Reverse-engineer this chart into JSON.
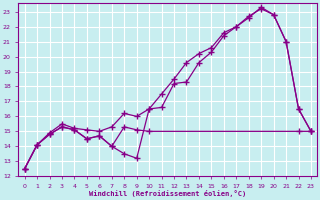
{
  "xlabel": "Windchill (Refroidissement éolien,°C)",
  "bg_color": "#c8eef0",
  "line_color": "#880088",
  "grid_color": "#ffffff",
  "xlim": [
    -0.5,
    23.5
  ],
  "ylim": [
    12,
    23.6
  ],
  "yticks": [
    12,
    13,
    14,
    15,
    16,
    17,
    18,
    19,
    20,
    21,
    22,
    23
  ],
  "xticks": [
    0,
    1,
    2,
    3,
    4,
    5,
    6,
    7,
    8,
    9,
    10,
    11,
    12,
    13,
    14,
    15,
    16,
    17,
    18,
    19,
    20,
    21,
    22,
    23
  ],
  "line1_x": [
    0,
    1,
    2,
    3,
    4,
    5,
    6,
    7,
    8,
    9,
    10,
    11,
    12,
    13,
    14,
    15,
    16,
    17,
    18,
    19,
    20,
    21,
    22,
    23
  ],
  "line1_y": [
    12.5,
    14.1,
    14.8,
    15.3,
    15.1,
    14.5,
    14.7,
    14.0,
    13.5,
    13.2,
    16.5,
    16.6,
    18.2,
    18.3,
    19.6,
    20.3,
    21.4,
    22.0,
    22.6,
    23.3,
    22.8,
    21.0,
    16.5,
    15.0
  ],
  "line2_x": [
    0,
    1,
    2,
    3,
    4,
    5,
    6,
    7,
    8,
    9,
    10,
    11,
    12,
    13,
    14,
    15,
    16,
    17,
    18,
    19,
    20,
    21,
    22,
    23
  ],
  "line2_y": [
    12.5,
    14.1,
    14.9,
    15.5,
    15.2,
    15.1,
    15.0,
    15.3,
    16.2,
    16.0,
    16.5,
    17.5,
    18.5,
    19.6,
    20.2,
    20.6,
    21.6,
    22.0,
    22.7,
    23.2,
    22.8,
    21.0,
    16.5,
    15.0
  ],
  "line3_x": [
    0,
    1,
    2,
    3,
    4,
    5,
    6,
    7,
    8,
    9,
    10,
    22,
    23
  ],
  "line3_y": [
    12.5,
    14.1,
    14.8,
    15.3,
    15.1,
    14.5,
    14.7,
    14.0,
    15.3,
    15.1,
    15.0,
    15.0,
    15.0
  ]
}
